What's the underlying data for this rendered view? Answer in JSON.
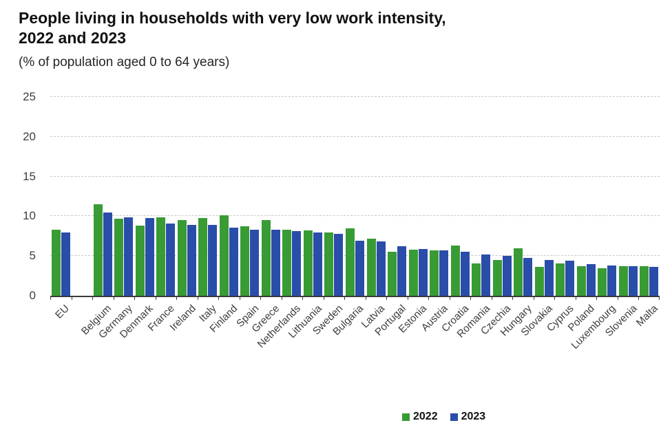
{
  "title_line1": "People living in households with very low work intensity,",
  "title_line2": "2022 and 2023",
  "subtitle": "(% of population aged 0 to 64 years)",
  "chart_data": {
    "type": "bar",
    "title": "People living in households with very low work intensity, 2022 and 2023",
    "subtitle": "(% of population aged 0 to 64 years)",
    "categories": [
      "EU",
      "Belgium",
      "Germany",
      "Denmark",
      "France",
      "Ireland",
      "Italy",
      "Finland",
      "Spain",
      "Greece",
      "Netherlands",
      "Lithuania",
      "Sweden",
      "Bulgaria",
      "Latvia",
      "Portugal",
      "Estonia",
      "Austria",
      "Croatia",
      "Romania",
      "Czechia",
      "Hungary",
      "Slovakia",
      "Cyprus",
      "Poland",
      "Luxembourg",
      "Slovenia",
      "Malta"
    ],
    "series": [
      {
        "name": "2022",
        "color": "#399b34",
        "values": [
          8.3,
          11.5,
          9.7,
          8.8,
          9.9,
          9.5,
          9.8,
          10.1,
          8.7,
          9.5,
          8.3,
          8.2,
          8.0,
          8.5,
          7.2,
          5.5,
          5.8,
          5.7,
          6.3,
          4.1,
          4.5,
          6.0,
          3.6,
          4.1,
          3.7,
          3.5,
          3.7,
          3.7
        ]
      },
      {
        "name": "2023",
        "color": "#2a4daa",
        "values": [
          8.0,
          10.5,
          9.9,
          9.8,
          9.1,
          8.9,
          8.9,
          8.6,
          8.3,
          8.3,
          8.1,
          8.0,
          7.8,
          6.9,
          6.8,
          6.2,
          5.9,
          5.7,
          5.5,
          5.2,
          5.0,
          4.8,
          4.5,
          4.4,
          4.0,
          3.8,
          3.7,
          3.6
        ]
      }
    ],
    "xlabel": "",
    "ylabel": "",
    "ylim": [
      0,
      25
    ],
    "yticks": [
      0,
      5,
      10,
      15,
      20,
      25
    ],
    "grid": "horizontal-dashed",
    "legend_position": "bottom",
    "gap_after_first_category": true,
    "x_label_rotation_deg": -45
  }
}
